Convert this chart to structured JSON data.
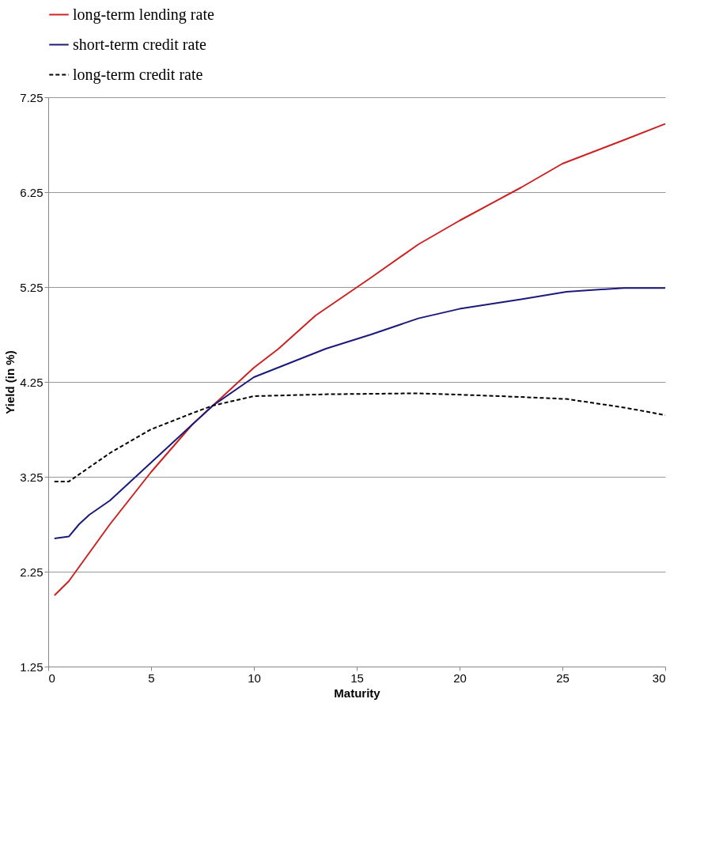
{
  "chart_data": {
    "type": "line",
    "xlabel": "Maturity",
    "ylabel": "Yield (in %)",
    "xlim": [
      0,
      30
    ],
    "xticks": [
      0,
      5,
      10,
      15,
      20,
      25,
      30
    ],
    "ylim": [
      1.25,
      7.25
    ],
    "yticks": [
      1.25,
      2.25,
      3.25,
      4.25,
      5.25,
      6.25,
      7.25
    ],
    "grid": "y",
    "legend": "top left",
    "series": [
      {
        "name": "long-term lending rate",
        "color": "#cc2222",
        "line_style": "solid",
        "x": [
          0.3,
          1,
          2,
          3,
          5,
          7,
          8,
          10,
          11.2,
          13,
          15.7,
          18,
          20,
          23,
          25,
          28,
          30
        ],
        "values": [
          2.0,
          2.15,
          2.45,
          2.75,
          3.3,
          3.8,
          4.0,
          4.4,
          4.6,
          4.95,
          5.35,
          5.7,
          5.95,
          6.3,
          6.55,
          6.8,
          6.97
        ]
      },
      {
        "name": "short-term credit rate",
        "color": "#1a1a7a",
        "line_style": "solid",
        "x": [
          0.3,
          1,
          1.5,
          2,
          3,
          5,
          7,
          8,
          10,
          13.5,
          15.7,
          18,
          20,
          23,
          25.2,
          28,
          30
        ],
        "values": [
          2.6,
          2.62,
          2.75,
          2.85,
          3.0,
          3.4,
          3.8,
          4.0,
          4.3,
          4.6,
          4.75,
          4.92,
          5.02,
          5.12,
          5.2,
          5.24,
          5.24
        ]
      },
      {
        "name": "long-term credit rate",
        "color": "#000000",
        "line_style": "dashed",
        "x": [
          0.3,
          1,
          2,
          3,
          5,
          7,
          8,
          10,
          13.6,
          18,
          22,
          25.2,
          28,
          30
        ],
        "values": [
          3.2,
          3.2,
          3.35,
          3.5,
          3.75,
          3.92,
          4.0,
          4.1,
          4.12,
          4.13,
          4.1,
          4.07,
          3.98,
          3.9
        ]
      }
    ]
  }
}
